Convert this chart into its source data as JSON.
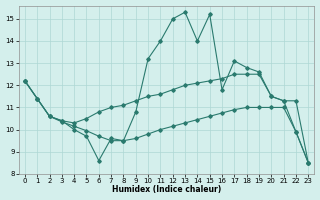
{
  "line1_x": [
    0,
    1,
    2,
    3,
    4,
    5,
    6,
    7,
    8,
    9,
    10,
    11,
    12,
    13,
    14,
    15,
    16,
    17,
    18,
    19,
    20,
    21,
    22,
    23
  ],
  "line1_y": [
    12.2,
    11.4,
    10.6,
    10.4,
    10.0,
    9.7,
    8.6,
    9.6,
    9.5,
    10.8,
    13.2,
    14.0,
    15.0,
    15.3,
    14.0,
    15.2,
    11.8,
    13.1,
    12.8,
    12.6,
    11.5,
    11.3,
    9.9,
    8.5
  ],
  "line2_x": [
    0,
    1,
    2,
    3,
    4,
    5,
    6,
    7,
    8,
    9,
    10,
    11,
    12,
    13,
    14,
    15,
    16,
    17,
    18,
    19,
    20,
    21,
    22,
    23
  ],
  "line2_y": [
    12.2,
    11.4,
    10.6,
    10.4,
    10.3,
    10.5,
    10.8,
    11.0,
    11.1,
    11.3,
    11.5,
    11.6,
    11.8,
    12.0,
    12.1,
    12.2,
    12.3,
    12.5,
    12.5,
    12.5,
    11.5,
    11.3,
    11.3,
    8.5
  ],
  "line3_x": [
    0,
    1,
    2,
    3,
    4,
    5,
    6,
    7,
    8,
    9,
    10,
    11,
    12,
    13,
    14,
    15,
    16,
    17,
    18,
    19,
    20,
    21,
    22,
    23
  ],
  "line3_y": [
    12.2,
    11.4,
    10.6,
    10.35,
    10.15,
    9.95,
    9.7,
    9.5,
    9.5,
    9.6,
    9.8,
    10.0,
    10.15,
    10.3,
    10.45,
    10.6,
    10.75,
    10.9,
    11.0,
    11.0,
    11.0,
    11.0,
    9.9,
    8.5
  ],
  "line_color": "#2a7a6e",
  "bg_color": "#d4efec",
  "grid_color": "#aed8d4",
  "xlabel": "Humidex (Indice chaleur)",
  "xlim": [
    -0.5,
    23.5
  ],
  "ylim": [
    8,
    15.6
  ],
  "yticks": [
    8,
    9,
    10,
    11,
    12,
    13,
    14,
    15
  ],
  "xticks": [
    0,
    1,
    2,
    3,
    4,
    5,
    6,
    7,
    8,
    9,
    10,
    11,
    12,
    13,
    14,
    15,
    16,
    17,
    18,
    19,
    20,
    21,
    22,
    23
  ]
}
